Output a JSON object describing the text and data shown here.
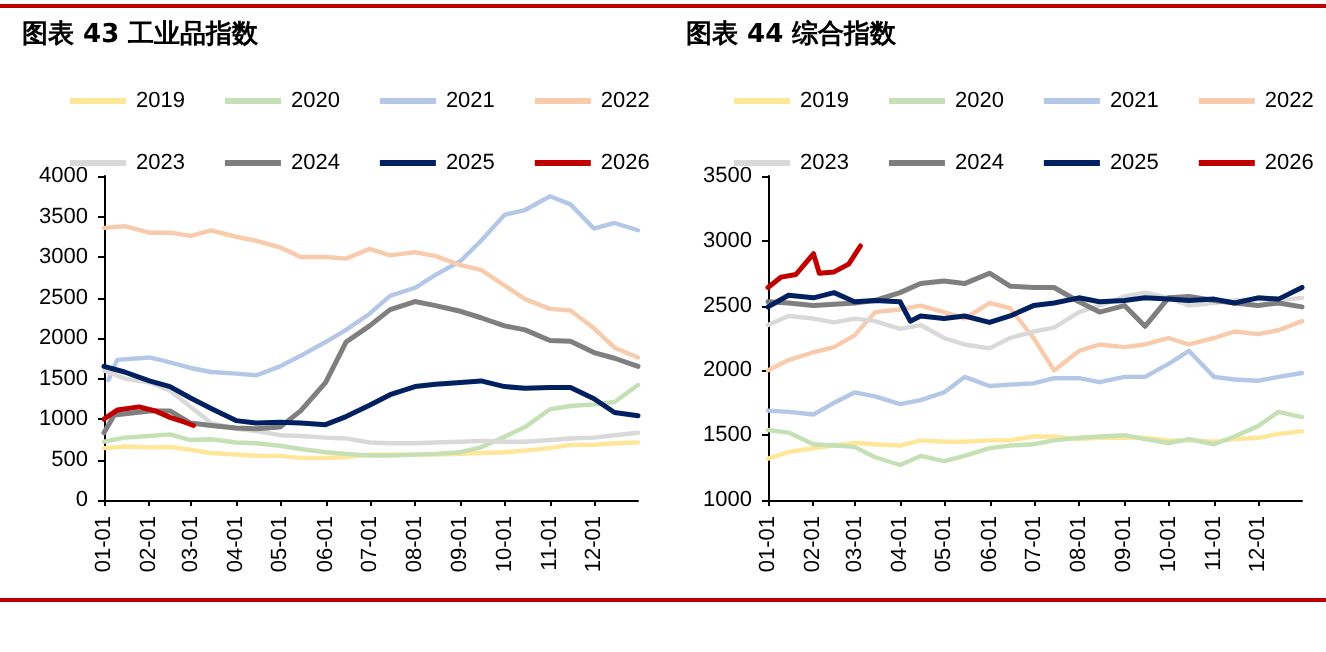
{
  "chart_data": [
    {
      "type": "line",
      "title": "图表 43 工业品指数",
      "legend": "top",
      "grid": false,
      "marker": "none",
      "line_style": "solid",
      "x": [
        "--01-01",
        "--01-15",
        "--02-01",
        "--02-15",
        "--03-01",
        "--03-15",
        "--04-01",
        "--04-15",
        "--05-01",
        "--05-15",
        "--06-01",
        "--06-15",
        "--07-01",
        "--07-15",
        "--08-01",
        "--08-15",
        "--09-01",
        "--09-15",
        "--10-01",
        "--10-15",
        "--11-01",
        "--11-15",
        "--12-01",
        "--12-15",
        "--12-31"
      ],
      "xlim": [
        "--01-01",
        "--12-31"
      ],
      "xticks": [
        {
          "value": "--01-01",
          "label": "01-01"
        },
        {
          "value": "--02-01",
          "label": "02-01"
        },
        {
          "value": "--03-01",
          "label": "03-01"
        },
        {
          "value": "--04-01",
          "label": "04-01"
        },
        {
          "value": "--05-01",
          "label": "05-01"
        },
        {
          "value": "--06-01",
          "label": "06-01"
        },
        {
          "value": "--07-01",
          "label": "07-01"
        },
        {
          "value": "--08-01",
          "label": "08-01"
        },
        {
          "value": "--09-01",
          "label": "09-01"
        },
        {
          "value": "--10-01",
          "label": "10-01"
        },
        {
          "value": "--11-01",
          "label": "11-01"
        },
        {
          "value": "--12-01",
          "label": "12-01"
        }
      ],
      "ylim": [
        0,
        4000
      ],
      "yticks": [
        0,
        500,
        1000,
        1500,
        2000,
        2500,
        3000,
        3500,
        4000
      ],
      "series": [
        {
          "name": "2019",
          "color": "#ffe699",
          "values": [
            640,
            660,
            650,
            655,
            620,
            580,
            560,
            545,
            545,
            520,
            520,
            530,
            560,
            560,
            560,
            560,
            570,
            580,
            590,
            610,
            640,
            680,
            680,
            700,
            710
          ]
        },
        {
          "name": "2020",
          "color": "#c5e0b4",
          "values": [
            720,
            770,
            790,
            810,
            740,
            750,
            710,
            700,
            670,
            630,
            590,
            570,
            550,
            550,
            560,
            570,
            590,
            650,
            780,
            900,
            1120,
            1160,
            1180,
            1210,
            1420
          ]
        },
        {
          "name": "2021",
          "color": "#b4c7e7",
          "x": [
            "--01-04",
            "--01-10",
            "--02-01",
            "--02-15",
            "--03-01",
            "--03-15",
            "--04-01",
            "--04-15",
            "--05-01",
            "--05-15",
            "--06-01",
            "--06-15",
            "--07-01",
            "--07-15",
            "--08-01",
            "--08-15",
            "--09-01",
            "--09-15",
            "--10-01",
            "--10-15",
            "--11-01",
            "--11-15",
            "--12-01",
            "--12-15",
            "--12-31"
          ],
          "values": [
            1480,
            1730,
            1760,
            1700,
            1630,
            1580,
            1560,
            1540,
            1650,
            1780,
            1950,
            2100,
            2300,
            2520,
            2620,
            2780,
            2950,
            3200,
            3520,
            3580,
            3750,
            3650,
            3350,
            3420,
            3330
          ]
        },
        {
          "name": "2022",
          "color": "#f8cbad",
          "values": [
            3360,
            3380,
            3300,
            3300,
            3260,
            3330,
            3250,
            3200,
            3120,
            3000,
            3000,
            2980,
            3100,
            3020,
            3060,
            3010,
            2900,
            2840,
            2650,
            2480,
            2360,
            2340,
            2120,
            1880,
            1760
          ]
        },
        {
          "name": "2023",
          "color": "#d9d9d9",
          "values": [
            1600,
            1500,
            1450,
            1350,
            1150,
            950,
            880,
            850,
            800,
            790,
            770,
            760,
            710,
            700,
            700,
            710,
            720,
            730,
            720,
            720,
            740,
            760,
            770,
            800,
            830
          ]
        },
        {
          "name": "2024",
          "color": "#7f7f7f",
          "x": [
            "--01-01",
            "--01-08",
            "--02-01",
            "--02-15",
            "--03-01",
            "--03-15",
            "--04-01",
            "--04-15",
            "--05-01",
            "--05-15",
            "--06-01",
            "--06-15",
            "--07-01",
            "--07-15",
            "--08-01",
            "--08-15",
            "--09-01",
            "--09-15",
            "--10-01",
            "--10-15",
            "--11-01",
            "--11-15",
            "--12-01",
            "--12-15",
            "--12-31"
          ],
          "values": [
            830,
            1050,
            1100,
            1100,
            950,
            920,
            890,
            880,
            900,
            1100,
            1450,
            1950,
            2150,
            2350,
            2450,
            2400,
            2330,
            2250,
            2150,
            2100,
            1970,
            1960,
            1820,
            1750,
            1650
          ]
        },
        {
          "name": "2025",
          "color": "#002060",
          "values": [
            1650,
            1580,
            1470,
            1400,
            1260,
            1130,
            980,
            950,
            960,
            950,
            930,
            1030,
            1170,
            1300,
            1400,
            1430,
            1450,
            1470,
            1400,
            1380,
            1390,
            1390,
            1250,
            1080,
            1040
          ]
        },
        {
          "name": "2026",
          "color": "#c00000",
          "x": [
            "--01-01",
            "--01-10",
            "--01-25",
            "--02-05",
            "--02-15",
            "--02-25",
            "--03-03"
          ],
          "values": [
            1000,
            1110,
            1150,
            1100,
            1020,
            960,
            920
          ]
        }
      ]
    },
    {
      "type": "line",
      "title": "图表 44 综合指数",
      "legend": "top",
      "grid": false,
      "marker": "none",
      "line_style": "solid",
      "x": [
        "--01-01",
        "--01-15",
        "--02-01",
        "--02-15",
        "--03-01",
        "--03-15",
        "--04-01",
        "--04-15",
        "--05-01",
        "--05-15",
        "--06-01",
        "--06-15",
        "--07-01",
        "--07-15",
        "--08-01",
        "--08-15",
        "--09-01",
        "--09-15",
        "--10-01",
        "--10-15",
        "--11-01",
        "--11-15",
        "--12-01",
        "--12-15",
        "--12-31"
      ],
      "xlim": [
        "--01-01",
        "--12-31"
      ],
      "xticks": [
        {
          "value": "--01-01",
          "label": "01-01"
        },
        {
          "value": "--02-01",
          "label": "02-01"
        },
        {
          "value": "--03-01",
          "label": "03-01"
        },
        {
          "value": "--04-01",
          "label": "04-01"
        },
        {
          "value": "--05-01",
          "label": "05-01"
        },
        {
          "value": "--06-01",
          "label": "06-01"
        },
        {
          "value": "--07-01",
          "label": "07-01"
        },
        {
          "value": "--08-01",
          "label": "08-01"
        },
        {
          "value": "--09-01",
          "label": "09-01"
        },
        {
          "value": "--10-01",
          "label": "10-01"
        },
        {
          "value": "--11-01",
          "label": "11-01"
        },
        {
          "value": "--12-01",
          "label": "12-01"
        }
      ],
      "ylim": [
        1000,
        3500
      ],
      "yticks": [
        1000,
        1500,
        2000,
        2500,
        3000,
        3500
      ],
      "series": [
        {
          "name": "2019",
          "color": "#ffe699",
          "values": [
            1320,
            1370,
            1400,
            1420,
            1440,
            1430,
            1420,
            1460,
            1450,
            1450,
            1460,
            1460,
            1490,
            1490,
            1470,
            1480,
            1480,
            1480,
            1460,
            1460,
            1450,
            1470,
            1480,
            1510,
            1530
          ]
        },
        {
          "name": "2020",
          "color": "#c5e0b4",
          "values": [
            1540,
            1520,
            1430,
            1420,
            1410,
            1330,
            1270,
            1340,
            1300,
            1340,
            1400,
            1420,
            1430,
            1460,
            1480,
            1490,
            1500,
            1470,
            1440,
            1470,
            1430,
            1490,
            1570,
            1680,
            1640
          ]
        },
        {
          "name": "2021",
          "color": "#b4c7e7",
          "values": [
            1690,
            1680,
            1660,
            1750,
            1830,
            1800,
            1740,
            1770,
            1830,
            1950,
            1880,
            1890,
            1900,
            1940,
            1940,
            1910,
            1950,
            1950,
            2050,
            2150,
            1950,
            1930,
            1920,
            1950,
            1980
          ]
        },
        {
          "name": "2022",
          "color": "#f8cbad",
          "values": [
            2000,
            2080,
            2140,
            2180,
            2270,
            2450,
            2470,
            2500,
            2450,
            2400,
            2520,
            2480,
            2250,
            2000,
            2150,
            2200,
            2180,
            2200,
            2250,
            2200,
            2250,
            2300,
            2280,
            2310,
            2380
          ]
        },
        {
          "name": "2023",
          "color": "#d9d9d9",
          "values": [
            2350,
            2420,
            2400,
            2370,
            2400,
            2380,
            2320,
            2350,
            2250,
            2200,
            2170,
            2250,
            2300,
            2330,
            2450,
            2500,
            2570,
            2600,
            2560,
            2500,
            2520,
            2540,
            2550,
            2540,
            2560
          ]
        },
        {
          "name": "2024",
          "color": "#7f7f7f",
          "values": [
            2530,
            2520,
            2500,
            2510,
            2520,
            2540,
            2600,
            2670,
            2690,
            2670,
            2750,
            2650,
            2640,
            2640,
            2530,
            2450,
            2500,
            2340,
            2560,
            2570,
            2540,
            2520,
            2500,
            2520,
            2490
          ]
        },
        {
          "name": "2025",
          "color": "#002060",
          "x": [
            "--01-01",
            "--01-15",
            "--02-01",
            "--02-15",
            "--03-01",
            "--03-15",
            "--04-01",
            "--04-08",
            "--04-15",
            "--05-01",
            "--05-15",
            "--06-01",
            "--06-15",
            "--07-01",
            "--07-15",
            "--08-01",
            "--08-15",
            "--09-01",
            "--09-15",
            "--10-01",
            "--10-15",
            "--11-01",
            "--11-15",
            "--12-01",
            "--12-15",
            "--12-31"
          ],
          "values": [
            2490,
            2580,
            2560,
            2600,
            2530,
            2540,
            2530,
            2380,
            2420,
            2400,
            2420,
            2370,
            2420,
            2500,
            2520,
            2560,
            2530,
            2540,
            2560,
            2550,
            2540,
            2550,
            2520,
            2560,
            2550,
            2640
          ]
        },
        {
          "name": "2026",
          "color": "#c00000",
          "x": [
            "--01-01",
            "--01-10",
            "--01-20",
            "--02-01",
            "--02-05",
            "--02-15",
            "--02-25",
            "--03-05"
          ],
          "values": [
            2640,
            2720,
            2740,
            2900,
            2750,
            2760,
            2820,
            2960
          ]
        }
      ]
    }
  ]
}
